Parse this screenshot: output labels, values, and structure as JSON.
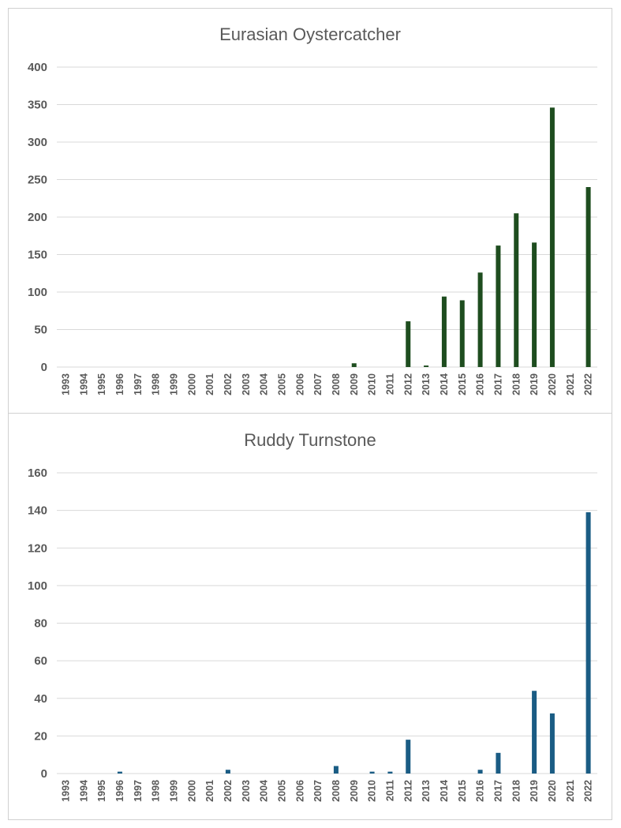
{
  "chart_data": [
    {
      "type": "bar",
      "title": "Eurasian Oystercatcher",
      "categories": [
        "1993",
        "1994",
        "1995",
        "1996",
        "1997",
        "1998",
        "1999",
        "2000",
        "2001",
        "2002",
        "2003",
        "2004",
        "2005",
        "2006",
        "2007",
        "2008",
        "2009",
        "2010",
        "2011",
        "2012",
        "2013",
        "2014",
        "2015",
        "2016",
        "2017",
        "2018",
        "2019",
        "2020",
        "2021",
        "2022"
      ],
      "values": [
        0,
        0,
        0,
        0,
        0,
        0,
        0,
        0,
        0,
        0,
        0,
        0,
        0,
        0,
        0,
        0,
        5,
        0,
        0,
        61,
        2,
        94,
        89,
        126,
        162,
        205,
        166,
        346,
        0,
        240
      ],
      "ylim": [
        0,
        400
      ],
      "yticks": [
        0,
        50,
        100,
        150,
        200,
        250,
        300,
        350,
        400
      ],
      "color": "#1e4d1f",
      "grid": true,
      "legend": "none"
    },
    {
      "type": "bar",
      "title": "Ruddy Turnstone",
      "categories": [
        "1993",
        "1994",
        "1995",
        "1996",
        "1997",
        "1998",
        "1999",
        "2000",
        "2001",
        "2002",
        "2003",
        "2004",
        "2005",
        "2006",
        "2007",
        "2008",
        "2009",
        "2010",
        "2011",
        "2012",
        "2013",
        "2014",
        "2015",
        "2016",
        "2017",
        "2018",
        "2019",
        "2020",
        "2021",
        "2022"
      ],
      "values": [
        0,
        0,
        0,
        1,
        0,
        0,
        0,
        0,
        0,
        2,
        0,
        0,
        0,
        0,
        0,
        4,
        0,
        1,
        1,
        18,
        0,
        0,
        0,
        2,
        11,
        0,
        44,
        32,
        0,
        139
      ],
      "ylim": [
        0,
        160
      ],
      "yticks": [
        0,
        20,
        40,
        60,
        80,
        100,
        120,
        140,
        160
      ],
      "color": "#1a5c84",
      "grid": true,
      "legend": "none"
    }
  ]
}
